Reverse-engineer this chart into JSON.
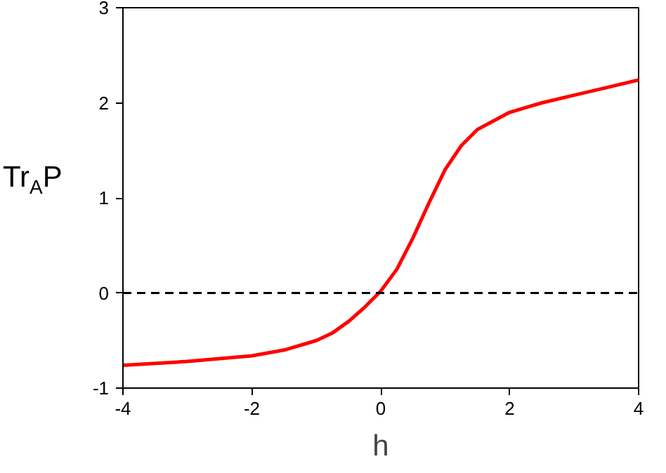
{
  "chart_data": {
    "type": "line",
    "xlabel": "h",
    "ylabel": "Tr$_{A}$P",
    "x": [
      -4,
      -3,
      -2,
      -1.5,
      -1,
      -0.75,
      -0.5,
      -0.25,
      0,
      0.25,
      0.5,
      0.75,
      1,
      1.25,
      1.5,
      2,
      2.5,
      3,
      3.5,
      4
    ],
    "series": [
      {
        "color": "#ff0000",
        "values": [
          -0.76,
          -0.72,
          -0.66,
          -0.6,
          -0.5,
          -0.42,
          -0.3,
          -0.15,
          0.02,
          0.25,
          0.58,
          0.95,
          1.3,
          1.55,
          1.72,
          1.9,
          2.0,
          2.08,
          2.16,
          2.24
        ]
      }
    ],
    "xlim": [
      -4,
      4
    ],
    "ylim": [
      -1,
      3
    ],
    "xticks": [
      -4,
      -2,
      0,
      2,
      4
    ],
    "yticks": [
      -1,
      0,
      1,
      2,
      3
    ],
    "ref_lines": [
      {
        "axis": "y",
        "value": 0,
        "color": "#000000",
        "line_style": "dashed"
      }
    ],
    "grid": false,
    "marker": "none",
    "line_style": "solid"
  }
}
